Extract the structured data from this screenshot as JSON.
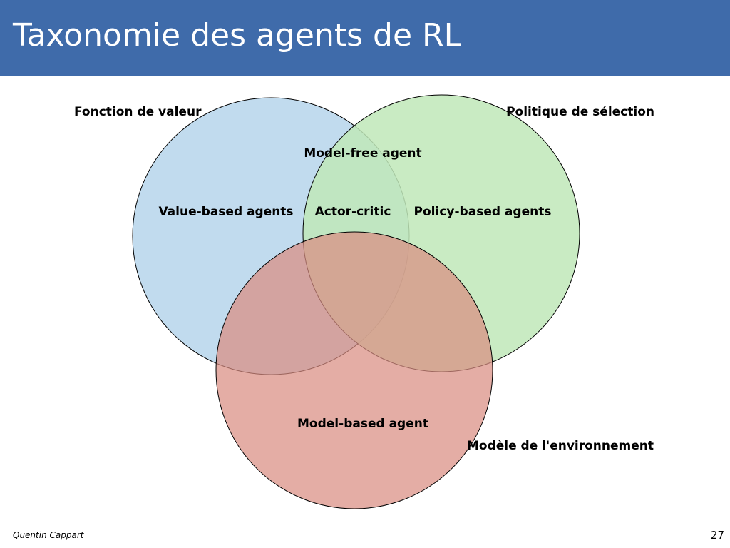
{
  "slide": {
    "title": "Taxonomie des agents de RL"
  },
  "diagram": {
    "sets": {
      "value_function": {
        "label": "Fonction de valeur",
        "color": "#b8d6ec"
      },
      "policy": {
        "label": "Politique de sélection",
        "color": "#bfe8b8"
      },
      "model": {
        "label": "Modèle de l'environnement",
        "color": "#dea196"
      }
    },
    "regions": {
      "value_based": "Value-based agents",
      "policy_based": "Policy-based agents",
      "actor_critic": "Actor-critic",
      "model_free": "Model-free agent",
      "model_based": "Model-based agent"
    }
  },
  "footer": {
    "author": "Quentin Cappart",
    "page_number": "27"
  }
}
